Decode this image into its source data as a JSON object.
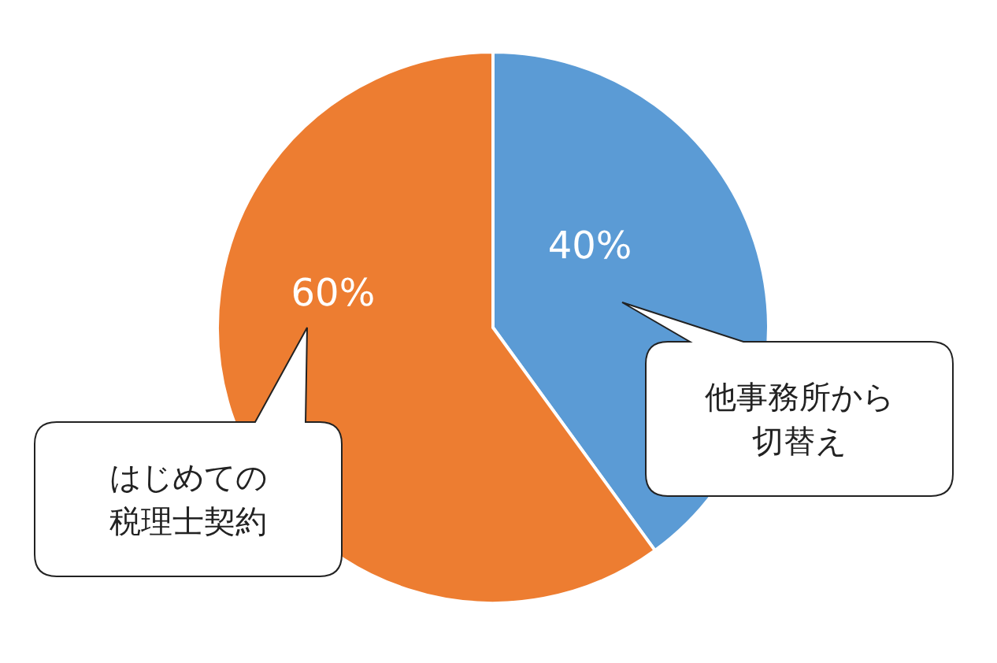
{
  "chart_data": {
    "type": "pie",
    "categories": [
      "他事務所から切替え",
      "はじめての税理士契約"
    ],
    "values": [
      40,
      60
    ],
    "colors": [
      "#5b9bd5",
      "#ed7d31"
    ],
    "value_labels": [
      "40%",
      "60%"
    ]
  }
}
